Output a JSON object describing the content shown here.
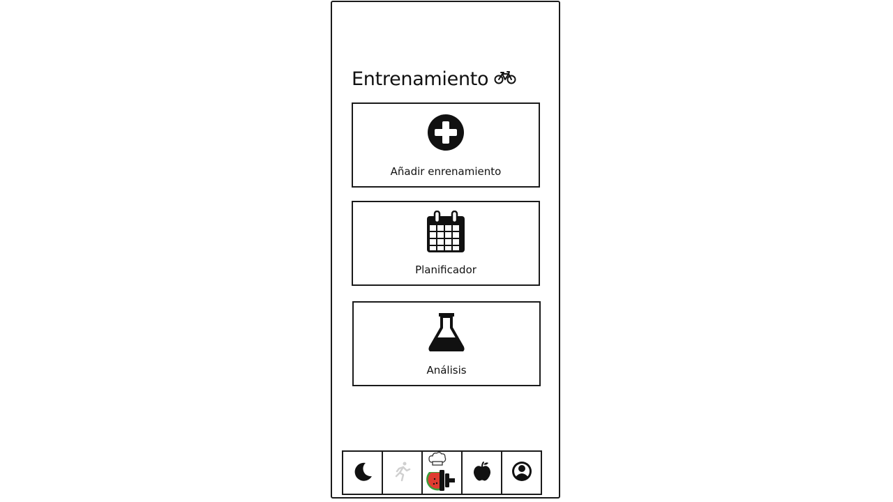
{
  "screen": {
    "title": "Entrenamiento"
  },
  "cards": [
    {
      "label": "Añadir enrenamiento",
      "icon": "plus-circle-icon"
    },
    {
      "label": "Planificador",
      "icon": "calendar-icon"
    },
    {
      "label": "Análisis",
      "icon": "flask-icon"
    }
  ],
  "tabbar": {
    "tabs": [
      {
        "icon": "moon-icon",
        "state": "default"
      },
      {
        "icon": "running-person-icon",
        "state": "disabled"
      },
      {
        "icon": "app-logo-icon",
        "state": "default"
      },
      {
        "icon": "apple-icon",
        "state": "default"
      },
      {
        "icon": "profile-icon",
        "state": "default"
      }
    ]
  },
  "colors": {
    "ink": "#111111",
    "disabled": "#cfcfcf",
    "watermelon_red": "#e03c31",
    "watermelon_green": "#3a9d3a"
  }
}
